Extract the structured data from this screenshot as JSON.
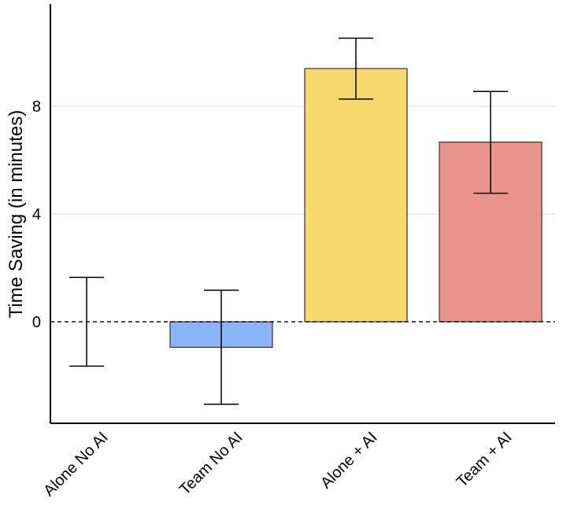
{
  "chart_data": {
    "type": "bar",
    "title": "",
    "xlabel": "",
    "ylabel": "Time Saving (in minutes)",
    "categories": [
      "Alone No AI",
      "Team No AI",
      "Alone + AI",
      "Team + AI"
    ],
    "values": [
      0,
      -0.95,
      9.4,
      6.67
    ],
    "error_low": [
      -1.65,
      -3.06,
      8.27,
      4.77
    ],
    "error_high": [
      1.65,
      1.17,
      10.53,
      8.55
    ],
    "colors": [
      "#8ab4f8",
      "#8ab4f8",
      "#f7d96f",
      "#eb948e"
    ],
    "yticks": [
      0,
      4,
      8
    ],
    "ylim": [
      -3.77,
      11.8
    ],
    "grid": "horizontal major",
    "reference_line": 0
  }
}
